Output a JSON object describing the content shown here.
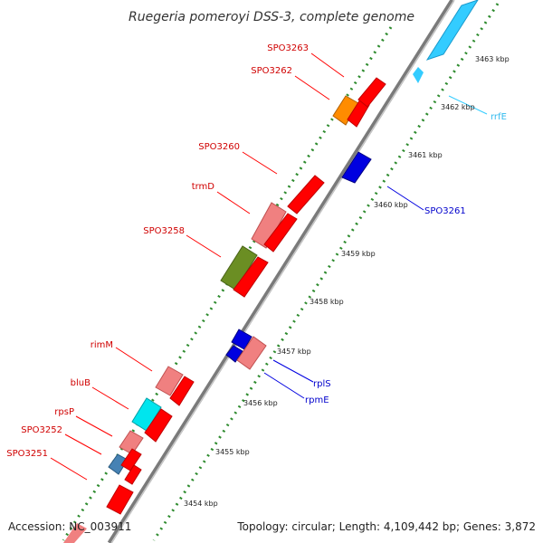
{
  "title": "Ruegeria pomeroyi DSS-3, complete genome",
  "footer": {
    "accession": "Accession: NC_003911",
    "topology": "Topology: circular; Length: 4,109,442 bp; Genes: 3,872"
  },
  "colors": {
    "backbone": "#888888",
    "tick_dot": "#2e8b2e",
    "red": "#ff0000",
    "pink": "#f08080",
    "orange": "#ff8c00",
    "olive": "#6b8e23",
    "cyan": "#00e5ee",
    "sky": "#33ccff",
    "steel": "#4682b4",
    "blue": "#0000e0"
  },
  "tick_labels": [
    "3463 kbp",
    "3462 kbp",
    "3461 kbp",
    "3460 kbp",
    "3459 kbp",
    "3458 kbp",
    "3457 kbp",
    "3456 kbp",
    "3455 kbp",
    "3454 kbp"
  ],
  "gene_labels_left": [
    "SPO3263",
    "SPO3262",
    "SPO3260",
    "trmD",
    "SPO3258",
    "rimM",
    "bluB",
    "rpsP",
    "SPO3252",
    "SPO3251"
  ],
  "gene_labels_right": [
    "rrfE",
    "SPO3261",
    "rplS",
    "rpmE"
  ]
}
